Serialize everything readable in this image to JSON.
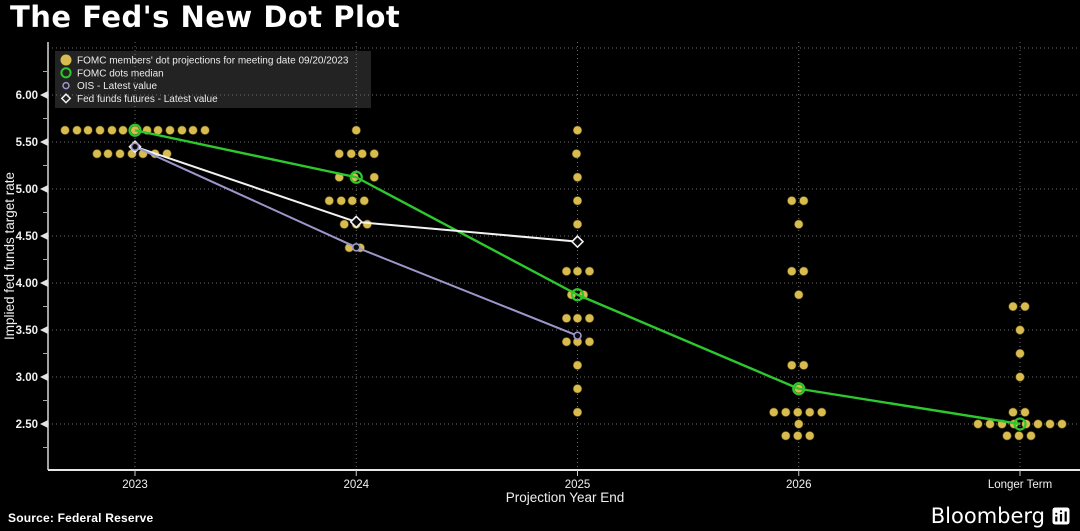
{
  "title": "The Fed's New Dot Plot",
  "source": "Source: Federal Reserve",
  "brand": {
    "name": "Bloomberg"
  },
  "chart_data": {
    "type": "scatter",
    "title": "The Fed's New Dot Plot",
    "xlabel": "Projection Year End",
    "ylabel": "Implied fed funds target rate",
    "categories": [
      "2023",
      "2024",
      "2025",
      "2026",
      "Longer Term"
    ],
    "y_ticks": [
      "6.00",
      "5.50",
      "5.00",
      "4.50",
      "4.00",
      "3.50",
      "3.00",
      "2.50"
    ],
    "ylim": [
      2.0,
      6.56
    ],
    "grid": "dotted",
    "legend_position": "top-left",
    "colors": {
      "dot": "#D9BC4F",
      "median": "#2DC82D",
      "ois": "#9C97CB",
      "fff": "#F2F2F2",
      "grid": "#8a8a8a",
      "axis": "#d8d8d8",
      "text": "#f0f0f0"
    },
    "legend": [
      {
        "id": "dots",
        "label": "FOMC members' dot projections for meeting date 09/20/2023",
        "marker": "filled-circle",
        "color": "#D9BC4F"
      },
      {
        "id": "median",
        "label": "FOMC dots median",
        "marker": "open-circle",
        "color": "#2DC82D"
      },
      {
        "id": "ois",
        "label": "OIS - Latest value",
        "marker": "open-circle-small",
        "color": "#9C97CB"
      },
      {
        "id": "fff",
        "label": "Fed funds futures - Latest value",
        "marker": "open-diamond",
        "color": "#F2F2F2"
      }
    ],
    "dots": [
      {
        "category": "2023",
        "rows": [
          {
            "rate": 5.625,
            "offsets": [
              -70,
              -58,
              -47,
              -35,
              -23,
              -12,
              0,
              12,
              23,
              35,
              47,
              58,
              70
            ]
          },
          {
            "rate": 5.375,
            "offsets": [
              -38,
              -27,
              -15,
              -3,
              8,
              20,
              32
            ]
          }
        ]
      },
      {
        "category": "2024",
        "rows": [
          {
            "rate": 5.625,
            "offsets": [
              0
            ]
          },
          {
            "rate": 5.375,
            "offsets": [
              -17,
              -5,
              6,
              18
            ]
          },
          {
            "rate": 5.125,
            "offsets": [
              -17,
              -2,
              18
            ]
          },
          {
            "rate": 4.875,
            "offsets": [
              -27,
              -15,
              -4,
              8
            ]
          },
          {
            "rate": 4.625,
            "offsets": [
              -12,
              0,
              11
            ]
          },
          {
            "rate": 4.375,
            "offsets": [
              -7,
              4
            ]
          }
        ]
      },
      {
        "category": "2025",
        "rows": [
          {
            "rate": 5.625,
            "offsets": [
              0
            ]
          },
          {
            "rate": 5.375,
            "offsets": [
              -1
            ]
          },
          {
            "rate": 5.125,
            "offsets": [
              0
            ]
          },
          {
            "rate": 4.875,
            "offsets": [
              0
            ]
          },
          {
            "rate": 4.625,
            "offsets": [
              0
            ]
          },
          {
            "rate": 4.125,
            "offsets": [
              -11,
              0,
              12
            ]
          },
          {
            "rate": 3.875,
            "offsets": [
              -6,
              6
            ]
          },
          {
            "rate": 3.625,
            "offsets": [
              -11,
              0,
              12
            ]
          },
          {
            "rate": 3.375,
            "offsets": [
              -11,
              0,
              12
            ]
          },
          {
            "rate": 3.125,
            "offsets": [
              0
            ]
          },
          {
            "rate": 2.875,
            "offsets": [
              0
            ]
          },
          {
            "rate": 2.625,
            "offsets": [
              0
            ]
          }
        ]
      },
      {
        "category": "2026",
        "rows": [
          {
            "rate": 4.875,
            "offsets": [
              -7,
              5
            ]
          },
          {
            "rate": 4.625,
            "offsets": [
              0
            ]
          },
          {
            "rate": 4.125,
            "offsets": [
              -7,
              5
            ]
          },
          {
            "rate": 3.875,
            "offsets": [
              0
            ]
          },
          {
            "rate": 3.125,
            "offsets": [
              -7,
              5
            ]
          },
          {
            "rate": 2.875,
            "offsets": [
              0
            ]
          },
          {
            "rate": 2.625,
            "offsets": [
              -25,
              -13,
              -1,
              11,
              23
            ]
          },
          {
            "rate": 2.5,
            "offsets": [
              0
            ]
          },
          {
            "rate": 2.375,
            "offsets": [
              -13,
              -1,
              11
            ]
          }
        ]
      },
      {
        "category": "Longer Term",
        "rows": [
          {
            "rate": 3.75,
            "offsets": [
              -7,
              5
            ]
          },
          {
            "rate": 3.5,
            "offsets": [
              0
            ]
          },
          {
            "rate": 3.25,
            "offsets": [
              0
            ]
          },
          {
            "rate": 3.0,
            "offsets": [
              0
            ]
          },
          {
            "rate": 2.625,
            "offsets": [
              -7,
              5
            ]
          },
          {
            "rate": 2.5,
            "offsets": [
              -42,
              -30,
              -18,
              -6,
              6,
              18,
              30,
              42
            ]
          },
          {
            "rate": 2.375,
            "offsets": [
              -13,
              -1,
              11
            ]
          }
        ]
      }
    ],
    "series": [
      {
        "id": "median",
        "name": "FOMC dots median",
        "color": "#2DC82D",
        "marker": "open-circle",
        "points": [
          [
            "2023",
            5.625
          ],
          [
            "2024",
            5.125
          ],
          [
            "2025",
            3.875
          ],
          [
            "2026",
            2.875
          ],
          [
            "Longer Term",
            2.5
          ]
        ]
      },
      {
        "id": "fff",
        "name": "Fed funds futures - Latest value",
        "color": "#F2F2F2",
        "marker": "open-diamond",
        "points": [
          [
            "2023",
            5.45
          ],
          [
            "2024",
            4.65
          ],
          [
            "2025",
            4.44
          ]
        ]
      },
      {
        "id": "ois",
        "name": "OIS - Latest value",
        "color": "#9C97CB",
        "marker": "open-circle-small",
        "points": [
          [
            "2023",
            5.45
          ],
          [
            "2024",
            4.38
          ],
          [
            "2025",
            3.44
          ]
        ]
      }
    ]
  }
}
